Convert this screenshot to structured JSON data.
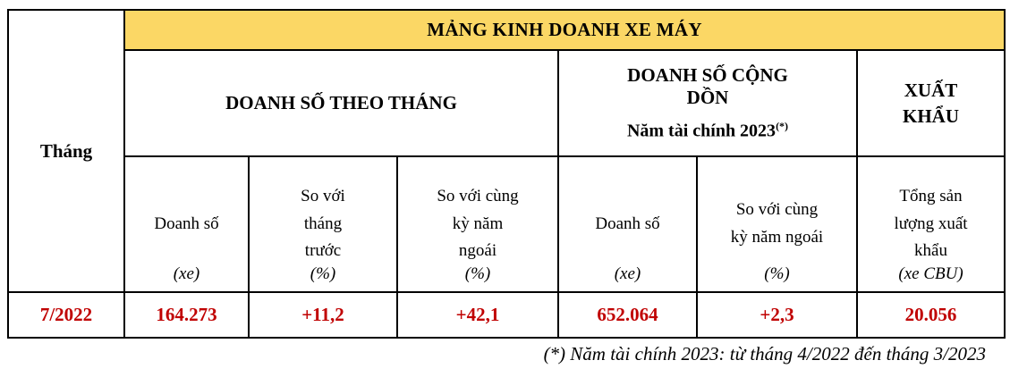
{
  "colors": {
    "banner_bg": "#FBD765",
    "data_red": "#C00000",
    "border": "#000000"
  },
  "table": {
    "month_header": "Tháng",
    "banner": "MẢNG KINH DOANH XE MÁY",
    "group_monthly": "DOANH SỐ THEO THÁNG",
    "group_cumulative": "DOANH SỐ CỘNG DỒN",
    "fiscal_year_label": "Năm tài chính 2023",
    "footnote_marker": "(*)",
    "group_export": "XUẤT KHẨU",
    "columns": [
      {
        "label": "Doanh số",
        "unit": "(xe)"
      },
      {
        "label": "So với tháng trước",
        "unit": "(%)"
      },
      {
        "label": "So với cùng kỳ năm ngoái",
        "unit": "(%)"
      },
      {
        "label": "Doanh số",
        "unit": "(xe)"
      },
      {
        "label": "So với cùng kỳ năm ngoái",
        "unit": "(%)"
      },
      {
        "label": "Tổng sản lượng xuất khẩu",
        "unit": "(xe CBU)"
      }
    ],
    "row": {
      "month": "7/2022",
      "values": [
        "164.273",
        "+11,2",
        "+42,1",
        "652.064",
        "+2,3",
        "20.056"
      ]
    }
  },
  "footnote": "(*) Năm tài chính 2023: từ tháng 4/2022 đến tháng 3/2023"
}
